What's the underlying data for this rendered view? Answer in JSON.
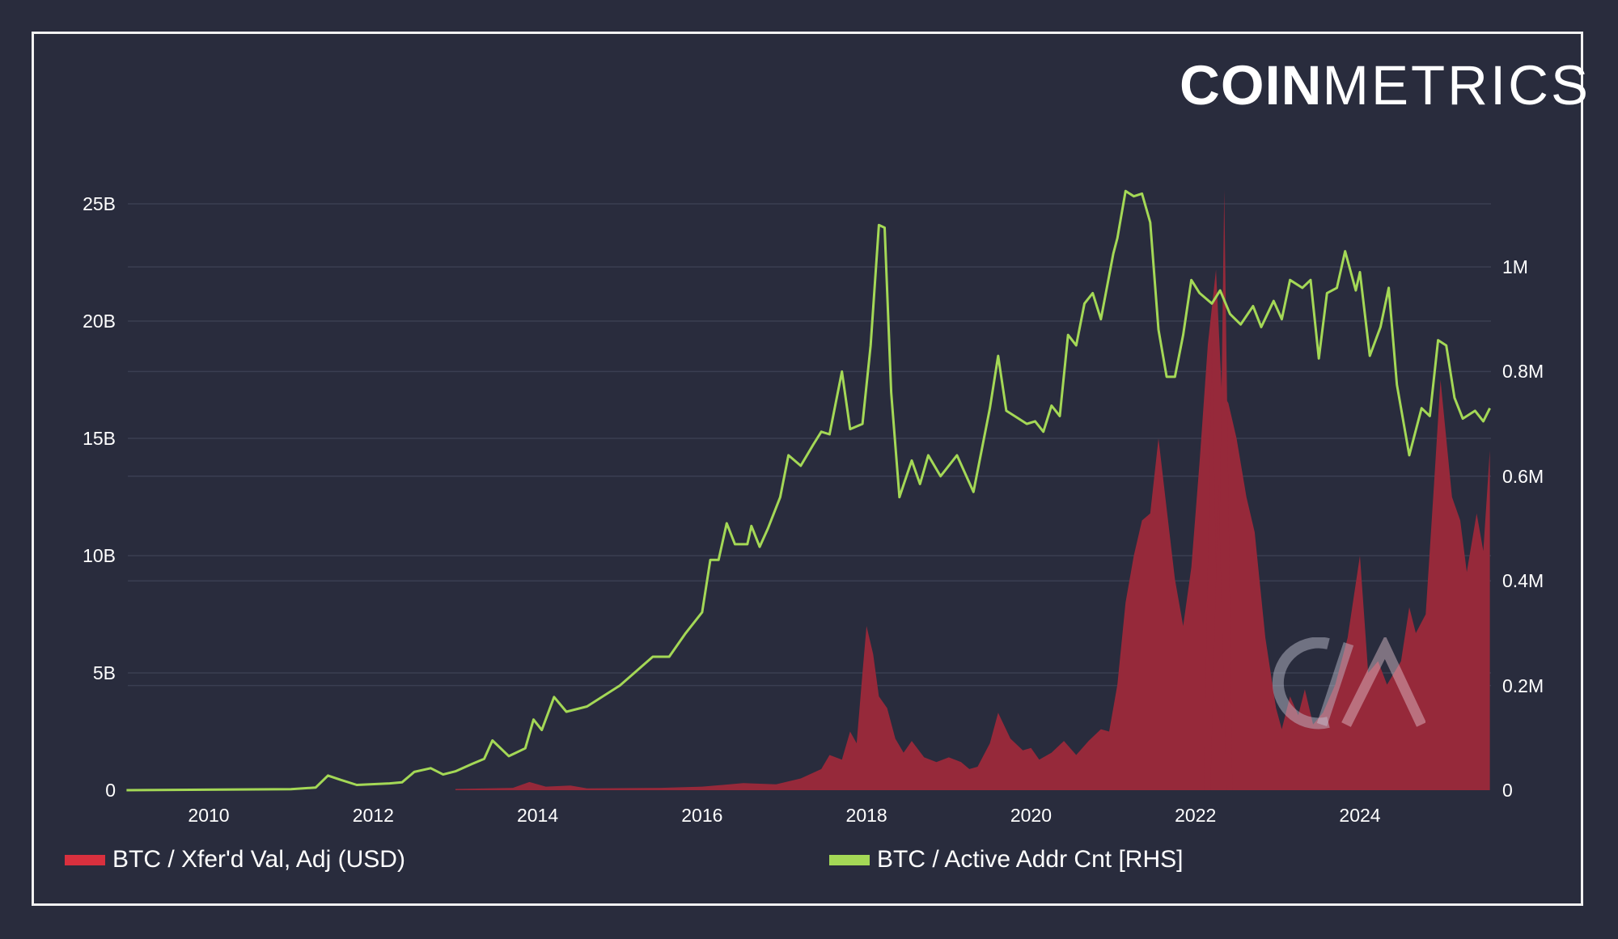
{
  "brand": {
    "bold": "COIN",
    "light": "METRICS"
  },
  "colors": {
    "background": "#292c3d",
    "frame": "#f2f2f2",
    "grid": "#3a3e52",
    "area": "#96293a",
    "line": "#a4d856",
    "legend_red": "#d9303e",
    "legend_green": "#a4d856",
    "text": "#ffffff"
  },
  "axes": {
    "left_ticks": [
      "0",
      "5B",
      "10B",
      "15B",
      "20B",
      "25B"
    ],
    "right_ticks": [
      "0",
      "0.2M",
      "0.4M",
      "0.6M",
      "0.8M",
      "1M"
    ],
    "x_ticks": [
      "2010",
      "2012",
      "2014",
      "2016",
      "2018",
      "2020",
      "2022",
      "2024"
    ]
  },
  "legend": [
    {
      "label": "BTC / Xfer'd Val, Adj (USD)",
      "color": "#d9303e"
    },
    {
      "label": "BTC / Active Addr Cnt [RHS]",
      "color": "#a4d856"
    }
  ],
  "chart_data": {
    "type": "area+line",
    "title": "",
    "xlabel": "",
    "ylabel": "",
    "y2label": "",
    "xlim": [
      2009.0,
      2025.6
    ],
    "ylim": [
      0,
      26000000000
    ],
    "y2lim": [
      0,
      1250000
    ],
    "grid": true,
    "legend_position": "bottom",
    "x_ticks": [
      2010,
      2012,
      2014,
      2016,
      2018,
      2020,
      2022,
      2024
    ],
    "series": [
      {
        "name": "BTC / Xfer'd Val, Adj (USD)",
        "axis": "left",
        "type": "area",
        "color": "#96293a",
        "points": [
          [
            2013.0,
            50000000.0
          ],
          [
            2013.7,
            100000000.0
          ],
          [
            2013.9,
            350000000.0
          ],
          [
            2014.1,
            150000000.0
          ],
          [
            2014.4,
            200000000.0
          ],
          [
            2014.6,
            80000000.0
          ],
          [
            2015.5,
            100000000.0
          ],
          [
            2016.0,
            150000000.0
          ],
          [
            2016.5,
            300000000.0
          ],
          [
            2016.9,
            250000000.0
          ],
          [
            2017.2,
            500000000.0
          ],
          [
            2017.45,
            900000000.0
          ],
          [
            2017.55,
            1500000000.0
          ],
          [
            2017.7,
            1300000000.0
          ],
          [
            2017.8,
            2500000000.0
          ],
          [
            2017.88,
            2000000000.0
          ],
          [
            2017.95,
            5000000000.0
          ],
          [
            2018.0,
            7000000000.0
          ],
          [
            2018.08,
            5800000000.0
          ],
          [
            2018.15,
            4000000000.0
          ],
          [
            2018.25,
            3500000000.0
          ],
          [
            2018.35,
            2200000000.0
          ],
          [
            2018.45,
            1600000000.0
          ],
          [
            2018.55,
            2100000000.0
          ],
          [
            2018.7,
            1400000000.0
          ],
          [
            2018.85,
            1200000000.0
          ],
          [
            2019.0,
            1400000000.0
          ],
          [
            2019.15,
            1200000000.0
          ],
          [
            2019.25,
            900000000.0
          ],
          [
            2019.35,
            1000000000.0
          ],
          [
            2019.5,
            2000000000.0
          ],
          [
            2019.6,
            3300000000.0
          ],
          [
            2019.75,
            2200000000.0
          ],
          [
            2019.9,
            1700000000.0
          ],
          [
            2020.0,
            1800000000.0
          ],
          [
            2020.1,
            1300000000.0
          ],
          [
            2020.25,
            1600000000.0
          ],
          [
            2020.4,
            2100000000.0
          ],
          [
            2020.55,
            1500000000.0
          ],
          [
            2020.7,
            2100000000.0
          ],
          [
            2020.85,
            2600000000.0
          ],
          [
            2020.95,
            2500000000.0
          ],
          [
            2021.05,
            4500000000.0
          ],
          [
            2021.15,
            8000000000.0
          ],
          [
            2021.25,
            10000000000.0
          ],
          [
            2021.35,
            11500000000.0
          ],
          [
            2021.45,
            11800000000.0
          ],
          [
            2021.55,
            15000000000.0
          ],
          [
            2021.65,
            12000000000.0
          ],
          [
            2021.75,
            9000000000.0
          ],
          [
            2021.85,
            7000000000.0
          ],
          [
            2021.95,
            9500000000.0
          ],
          [
            2022.05,
            14000000000.0
          ],
          [
            2022.15,
            19000000000.0
          ],
          [
            2022.25,
            22200000000.0
          ],
          [
            2022.32,
            17000000000.0
          ],
          [
            2022.4,
            16500000000.0
          ],
          [
            2022.5,
            15000000000.0
          ],
          [
            2022.62,
            12500000000.0
          ],
          [
            2022.72,
            11000000000.0
          ],
          [
            2022.85,
            6500000000.0
          ],
          [
            2022.98,
            3500000000.0
          ],
          [
            2023.05,
            2600000000.0
          ],
          [
            2023.15,
            4000000000.0
          ],
          [
            2023.25,
            3200000000.0
          ],
          [
            2023.33,
            4300000000.0
          ],
          [
            2023.43,
            2800000000.0
          ],
          [
            2023.55,
            3300000000.0
          ],
          [
            2023.7,
            4500000000.0
          ],
          [
            2023.85,
            6500000000.0
          ],
          [
            2024.0,
            10000000000.0
          ],
          [
            2024.1,
            5000000000.0
          ],
          [
            2024.22,
            5500000000.0
          ],
          [
            2024.33,
            4500000000.0
          ],
          [
            2024.5,
            5500000000.0
          ],
          [
            2024.6,
            7800000000.0
          ],
          [
            2024.68,
            6700000000.0
          ],
          [
            2024.8,
            7500000000.0
          ],
          [
            2024.9,
            13000000000.0
          ],
          [
            2024.98,
            17500000000.0
          ],
          [
            2025.05,
            15000000000.0
          ],
          [
            2025.12,
            12500000000.0
          ],
          [
            2025.22,
            11500000000.0
          ],
          [
            2025.3,
            9300000000.0
          ],
          [
            2025.42,
            11800000000.0
          ],
          [
            2025.5,
            10200000000.0
          ],
          [
            2025.58,
            14500000000.0
          ]
        ],
        "spikes": [
          [
            2022.2,
            19200000000.0
          ],
          [
            2022.35,
            25600000000.0
          ],
          [
            2022.28,
            13000000000.0
          ]
        ]
      },
      {
        "name": "BTC / Active Addr Cnt [RHS]",
        "axis": "right",
        "type": "line",
        "color": "#a4d856",
        "points": [
          [
            2009.0,
            0
          ],
          [
            2011.0,
            2000
          ],
          [
            2011.3,
            5000
          ],
          [
            2011.45,
            28000
          ],
          [
            2011.6,
            20000
          ],
          [
            2011.8,
            10000
          ],
          [
            2012.2,
            13000
          ],
          [
            2012.35,
            15000
          ],
          [
            2012.5,
            35000
          ],
          [
            2012.7,
            42000
          ],
          [
            2012.85,
            30000
          ],
          [
            2013.0,
            36000
          ],
          [
            2013.2,
            50000
          ],
          [
            2013.35,
            60000
          ],
          [
            2013.45,
            95000
          ],
          [
            2013.65,
            65000
          ],
          [
            2013.85,
            80000
          ],
          [
            2013.95,
            135000
          ],
          [
            2014.05,
            115000
          ],
          [
            2014.2,
            178000
          ],
          [
            2014.35,
            150000
          ],
          [
            2014.6,
            160000
          ],
          [
            2015.0,
            200000
          ],
          [
            2015.4,
            255000
          ],
          [
            2015.6,
            255000
          ],
          [
            2015.8,
            300000
          ],
          [
            2016.0,
            340000
          ],
          [
            2016.1,
            440000
          ],
          [
            2016.2,
            440000
          ],
          [
            2016.3,
            510000
          ],
          [
            2016.4,
            470000
          ],
          [
            2016.55,
            470000
          ],
          [
            2016.6,
            505000
          ],
          [
            2016.7,
            465000
          ],
          [
            2016.8,
            500000
          ],
          [
            2016.95,
            560000
          ],
          [
            2017.05,
            640000
          ],
          [
            2017.2,
            620000
          ],
          [
            2017.35,
            660000
          ],
          [
            2017.45,
            685000
          ],
          [
            2017.55,
            680000
          ],
          [
            2017.7,
            800000
          ],
          [
            2017.8,
            690000
          ],
          [
            2017.95,
            700000
          ],
          [
            2018.05,
            850000
          ],
          [
            2018.15,
            1080000
          ],
          [
            2018.22,
            1075000
          ],
          [
            2018.3,
            760000
          ],
          [
            2018.4,
            560000
          ],
          [
            2018.55,
            630000
          ],
          [
            2018.65,
            585000
          ],
          [
            2018.75,
            640000
          ],
          [
            2018.9,
            600000
          ],
          [
            2019.1,
            640000
          ],
          [
            2019.3,
            570000
          ],
          [
            2019.5,
            730000
          ],
          [
            2019.6,
            830000
          ],
          [
            2019.7,
            725000
          ],
          [
            2019.85,
            710000
          ],
          [
            2019.95,
            700000
          ],
          [
            2020.05,
            705000
          ],
          [
            2020.15,
            685000
          ],
          [
            2020.25,
            735000
          ],
          [
            2020.35,
            715000
          ],
          [
            2020.45,
            870000
          ],
          [
            2020.55,
            850000
          ],
          [
            2020.65,
            930000
          ],
          [
            2020.75,
            950000
          ],
          [
            2020.85,
            900000
          ],
          [
            2021.0,
            1025000
          ],
          [
            2021.05,
            1055000
          ],
          [
            2021.15,
            1145000
          ],
          [
            2021.25,
            1135000
          ],
          [
            2021.35,
            1140000
          ],
          [
            2021.45,
            1085000
          ],
          [
            2021.55,
            880000
          ],
          [
            2021.65,
            790000
          ],
          [
            2021.75,
            790000
          ],
          [
            2021.85,
            870000
          ],
          [
            2021.95,
            975000
          ],
          [
            2022.05,
            950000
          ],
          [
            2022.2,
            930000
          ],
          [
            2022.3,
            955000
          ],
          [
            2022.42,
            910000
          ],
          [
            2022.55,
            890000
          ],
          [
            2022.7,
            925000
          ],
          [
            2022.8,
            885000
          ],
          [
            2022.95,
            935000
          ],
          [
            2023.05,
            900000
          ],
          [
            2023.15,
            975000
          ],
          [
            2023.3,
            960000
          ],
          [
            2023.4,
            975000
          ],
          [
            2023.5,
            825000
          ],
          [
            2023.6,
            950000
          ],
          [
            2023.72,
            960000
          ],
          [
            2023.82,
            1030000
          ],
          [
            2023.95,
            955000
          ],
          [
            2024.0,
            990000
          ],
          [
            2024.12,
            830000
          ],
          [
            2024.25,
            885000
          ],
          [
            2024.35,
            960000
          ],
          [
            2024.45,
            775000
          ],
          [
            2024.6,
            640000
          ],
          [
            2024.75,
            730000
          ],
          [
            2024.85,
            715000
          ],
          [
            2024.95,
            860000
          ],
          [
            2025.05,
            850000
          ],
          [
            2025.15,
            750000
          ],
          [
            2025.25,
            710000
          ],
          [
            2025.4,
            725000
          ],
          [
            2025.5,
            705000
          ],
          [
            2025.58,
            730000
          ]
        ]
      }
    ]
  }
}
